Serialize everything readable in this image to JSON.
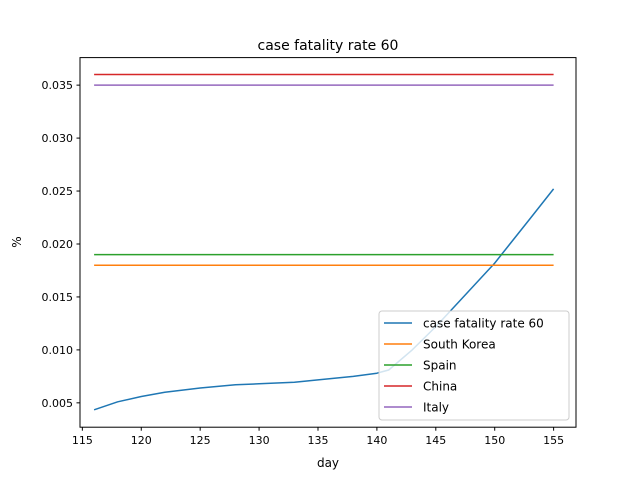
{
  "chart_data": {
    "type": "line",
    "title": "case fatality rate 60",
    "xlabel": "day",
    "ylabel": "%",
    "xlim": [
      114.8,
      156.9
    ],
    "ylim": [
      0.0027,
      0.0376
    ],
    "xticks": [
      115,
      120,
      125,
      130,
      135,
      140,
      145,
      150,
      155
    ],
    "yticks": [
      0.005,
      0.01,
      0.015,
      0.02,
      0.025,
      0.03,
      0.035
    ],
    "ytick_labels": [
      "0.005",
      "0.010",
      "0.015",
      "0.020",
      "0.025",
      "0.030",
      "0.035"
    ],
    "grid": false,
    "legend_position": "lower-right",
    "series": [
      {
        "name": "case fatality rate 60",
        "color": "#1f77b4",
        "x": [
          116,
          118,
          120,
          122,
          125,
          128,
          130,
          133,
          135,
          138,
          140,
          141,
          143,
          145,
          147,
          150,
          153,
          155
        ],
        "y": [
          0.00434,
          0.0051,
          0.0056,
          0.006,
          0.0064,
          0.0067,
          0.0068,
          0.00695,
          0.00717,
          0.0075,
          0.0078,
          0.0081,
          0.01,
          0.0122,
          0.0146,
          0.0182,
          0.0224,
          0.0252
        ]
      },
      {
        "name": "South Korea",
        "color": "#ff7f0e",
        "x": [
          116,
          155
        ],
        "y": [
          0.018,
          0.018
        ]
      },
      {
        "name": "Spain",
        "color": "#2ca02c",
        "x": [
          116,
          155
        ],
        "y": [
          0.019,
          0.019
        ]
      },
      {
        "name": "China",
        "color": "#d62728",
        "x": [
          116,
          155
        ],
        "y": [
          0.036,
          0.036
        ]
      },
      {
        "name": "Italy",
        "color": "#9467bd",
        "x": [
          116,
          155
        ],
        "y": [
          0.035,
          0.035
        ]
      }
    ]
  }
}
